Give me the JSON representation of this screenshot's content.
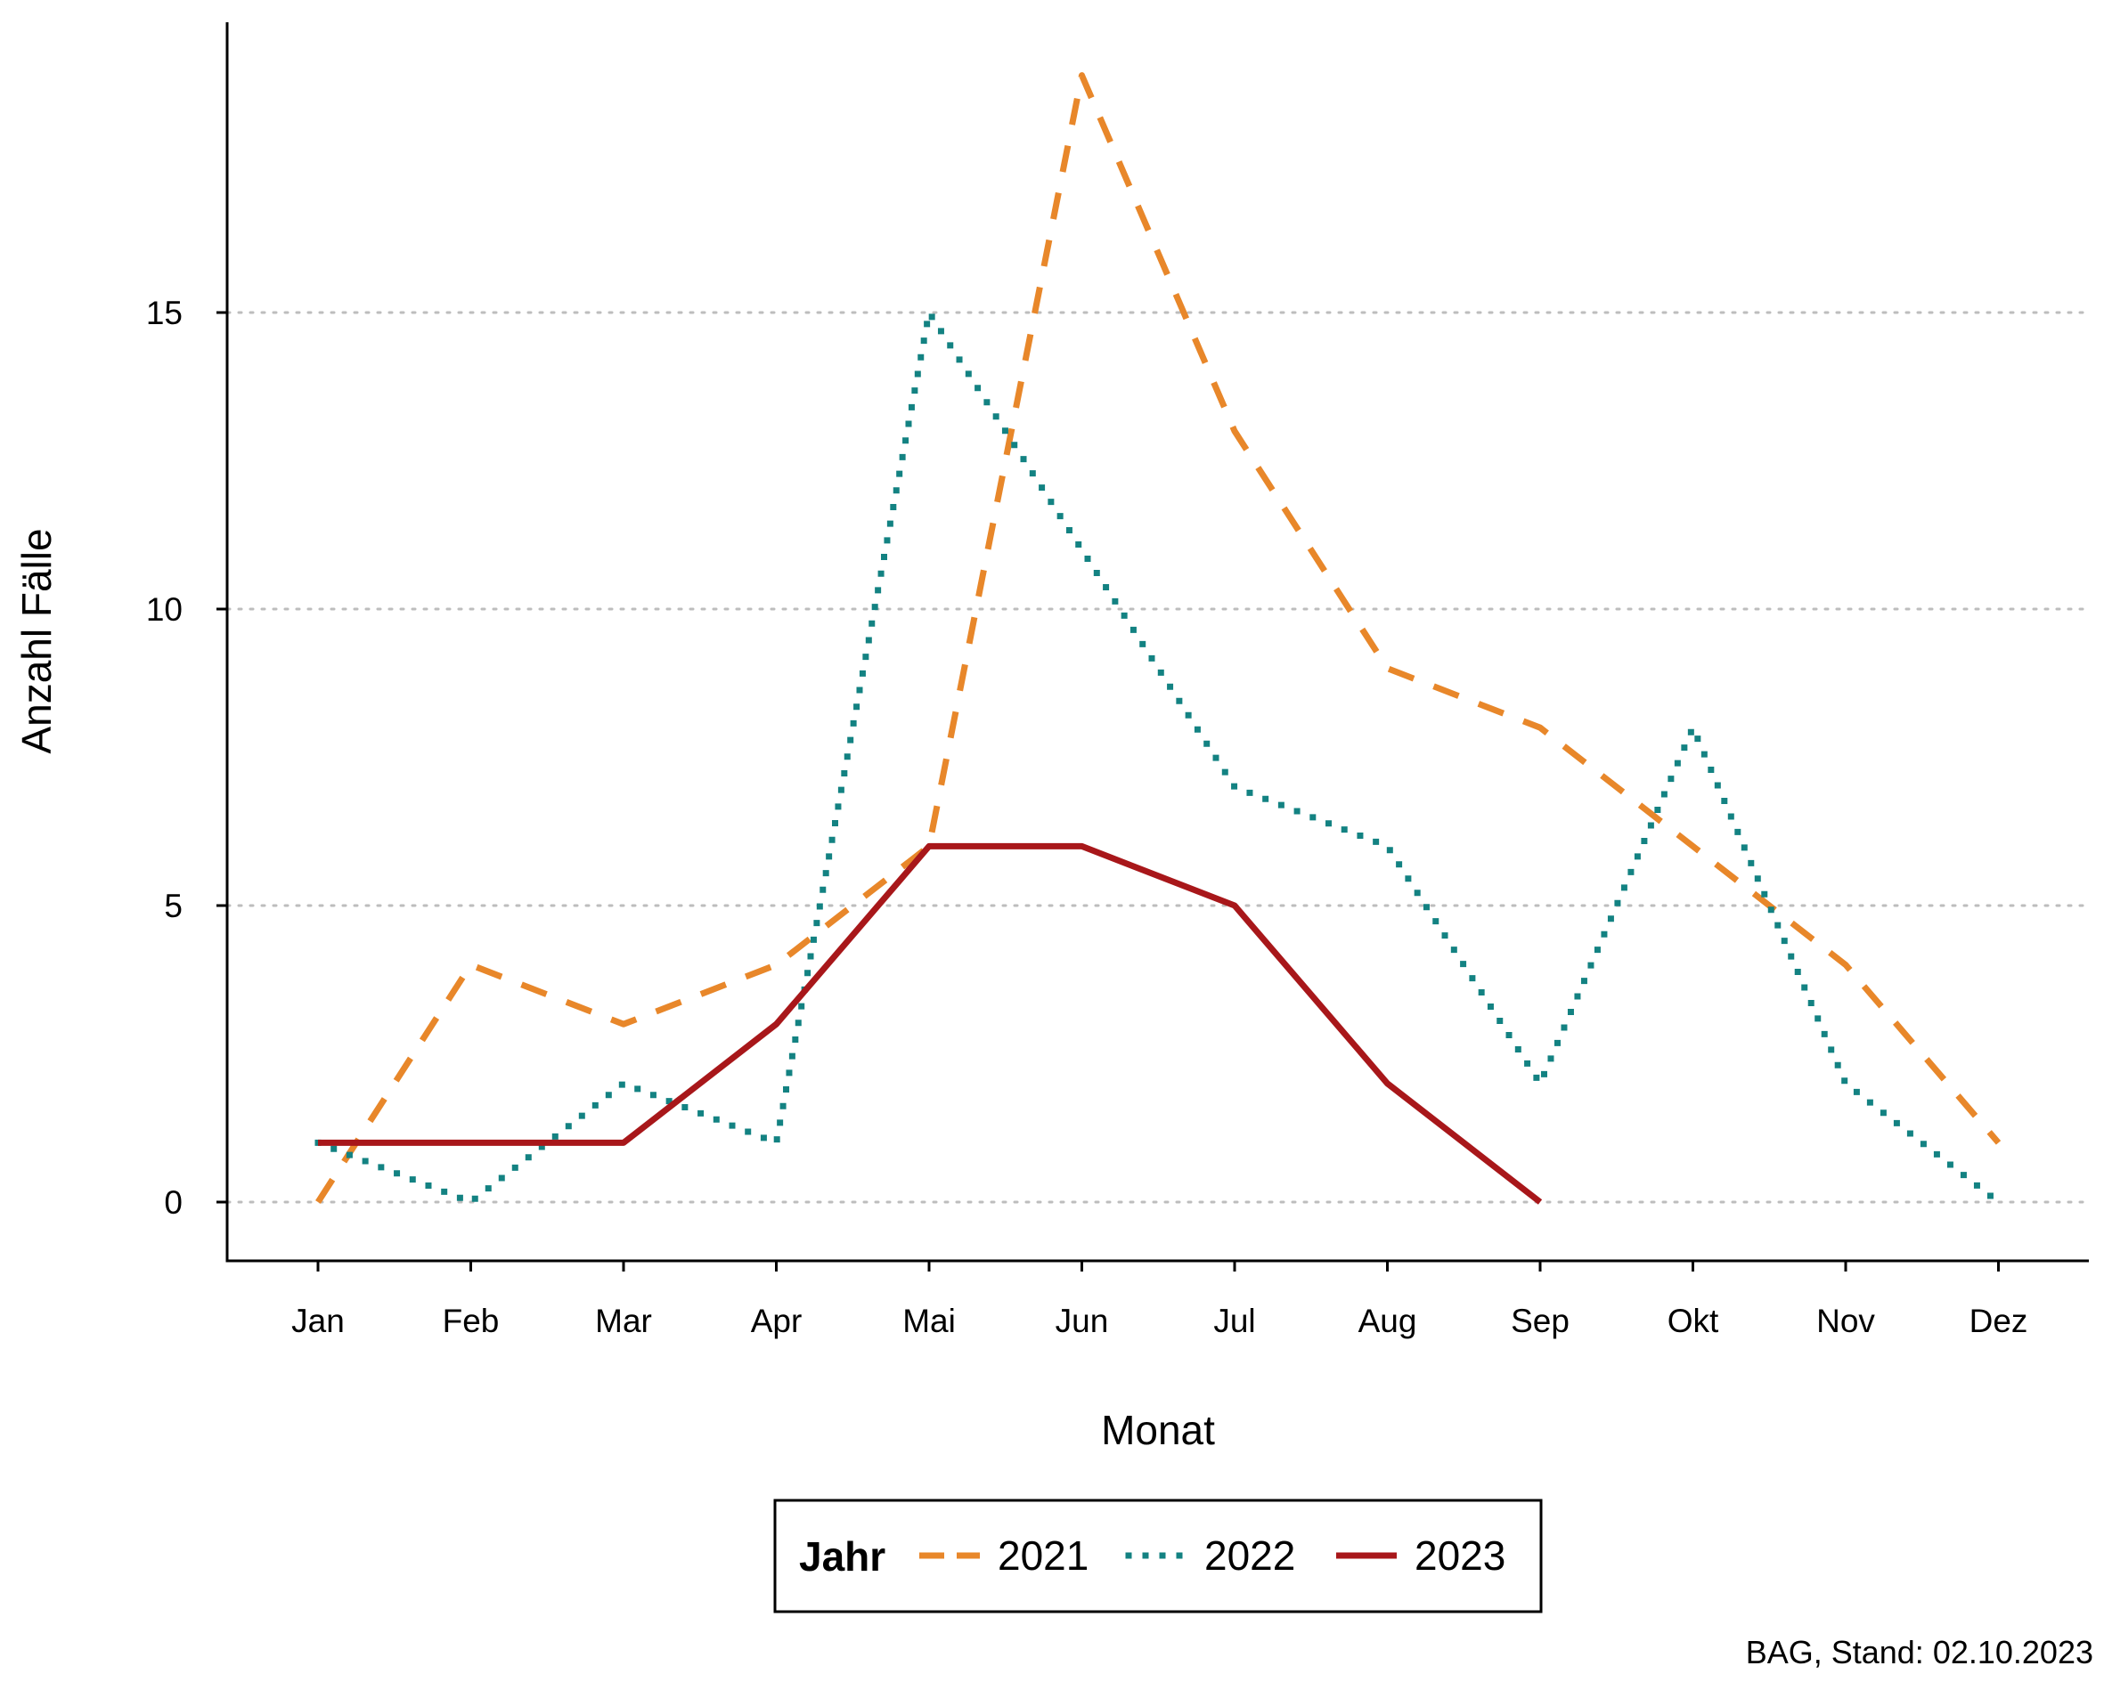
{
  "chart_data": {
    "type": "line",
    "title": "",
    "xlabel": "Monat",
    "ylabel": "Anzahl Fälle",
    "categories": [
      "Jan",
      "Feb",
      "Mar",
      "Apr",
      "Mai",
      "Jun",
      "Jul",
      "Aug",
      "Sep",
      "Okt",
      "Nov",
      "Dez"
    ],
    "yticks": [
      0,
      5,
      10,
      15
    ],
    "ylim": [
      -1,
      20
    ],
    "grid": "horizontal dotted",
    "legend": {
      "title": "Jahr",
      "position": "bottom"
    },
    "series": [
      {
        "name": "2021",
        "color": "#E8872A",
        "dash": "dashed",
        "values": [
          0,
          4,
          3,
          4,
          6,
          19,
          13,
          9,
          8,
          6,
          4,
          1
        ]
      },
      {
        "name": "2022",
        "color": "#138282",
        "dash": "dotted",
        "values": [
          1,
          0,
          2,
          1,
          15,
          11,
          7,
          6,
          2,
          8,
          2,
          0
        ]
      },
      {
        "name": "2023",
        "color": "#A8171A",
        "dash": "solid",
        "values": [
          1,
          1,
          1,
          3,
          6,
          6,
          5,
          2,
          0,
          null,
          null,
          null
        ]
      }
    ],
    "caption": "BAG, Stand: 02.10.2023"
  }
}
